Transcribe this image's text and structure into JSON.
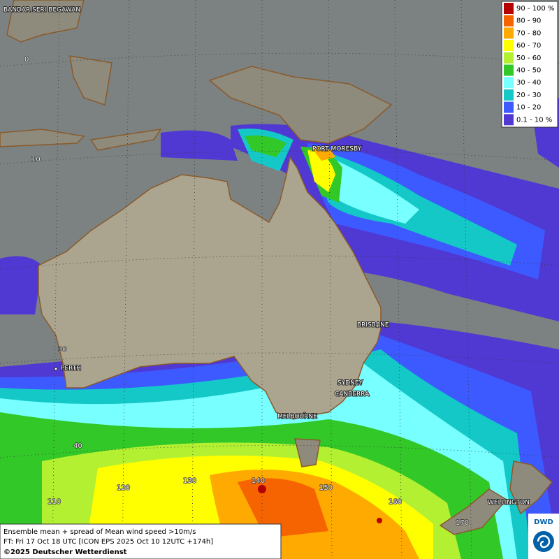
{
  "legend": {
    "entries": [
      {
        "label": "90 - 100 %",
        "color": "#b40000"
      },
      {
        "label": "80 - 90",
        "color": "#f56400"
      },
      {
        "label": "70 - 80",
        "color": "#ffaa00"
      },
      {
        "label": "60 - 70",
        "color": "#ffff00"
      },
      {
        "label": "50 - 60",
        "color": "#b4f032"
      },
      {
        "label": "40 - 50",
        "color": "#32c828"
      },
      {
        "label": "30 - 40",
        "color": "#78ffff"
      },
      {
        "label": "20 - 30",
        "color": "#14c8c8"
      },
      {
        "label": "10 - 20",
        "color": "#3c5aff"
      },
      {
        "label": "0.1 - 10 %",
        "color": "#5038d2"
      }
    ]
  },
  "cities": [
    "BANDAR SERI BEGAWAN",
    "PORT MORESBY",
    "BRISBANE",
    "PERTH",
    "SYDNEY",
    "CANBERRA",
    "MELBOURNE",
    "WELLINGTON"
  ],
  "grid_labels": [
    "0",
    "10",
    "30",
    "40",
    "110",
    "120",
    "130",
    "140",
    "150",
    "160",
    "170"
  ],
  "caption": {
    "lines": [
      "Ensemble mean + spread of Mean wind speed >10m/s",
      "FT: Fri 17 Oct 18 UTC [ICON EPS 2025 Oct 10 12UTC +174h]",
      "©2025 Deutscher Wetterdienst"
    ]
  },
  "logo": "DWD"
}
